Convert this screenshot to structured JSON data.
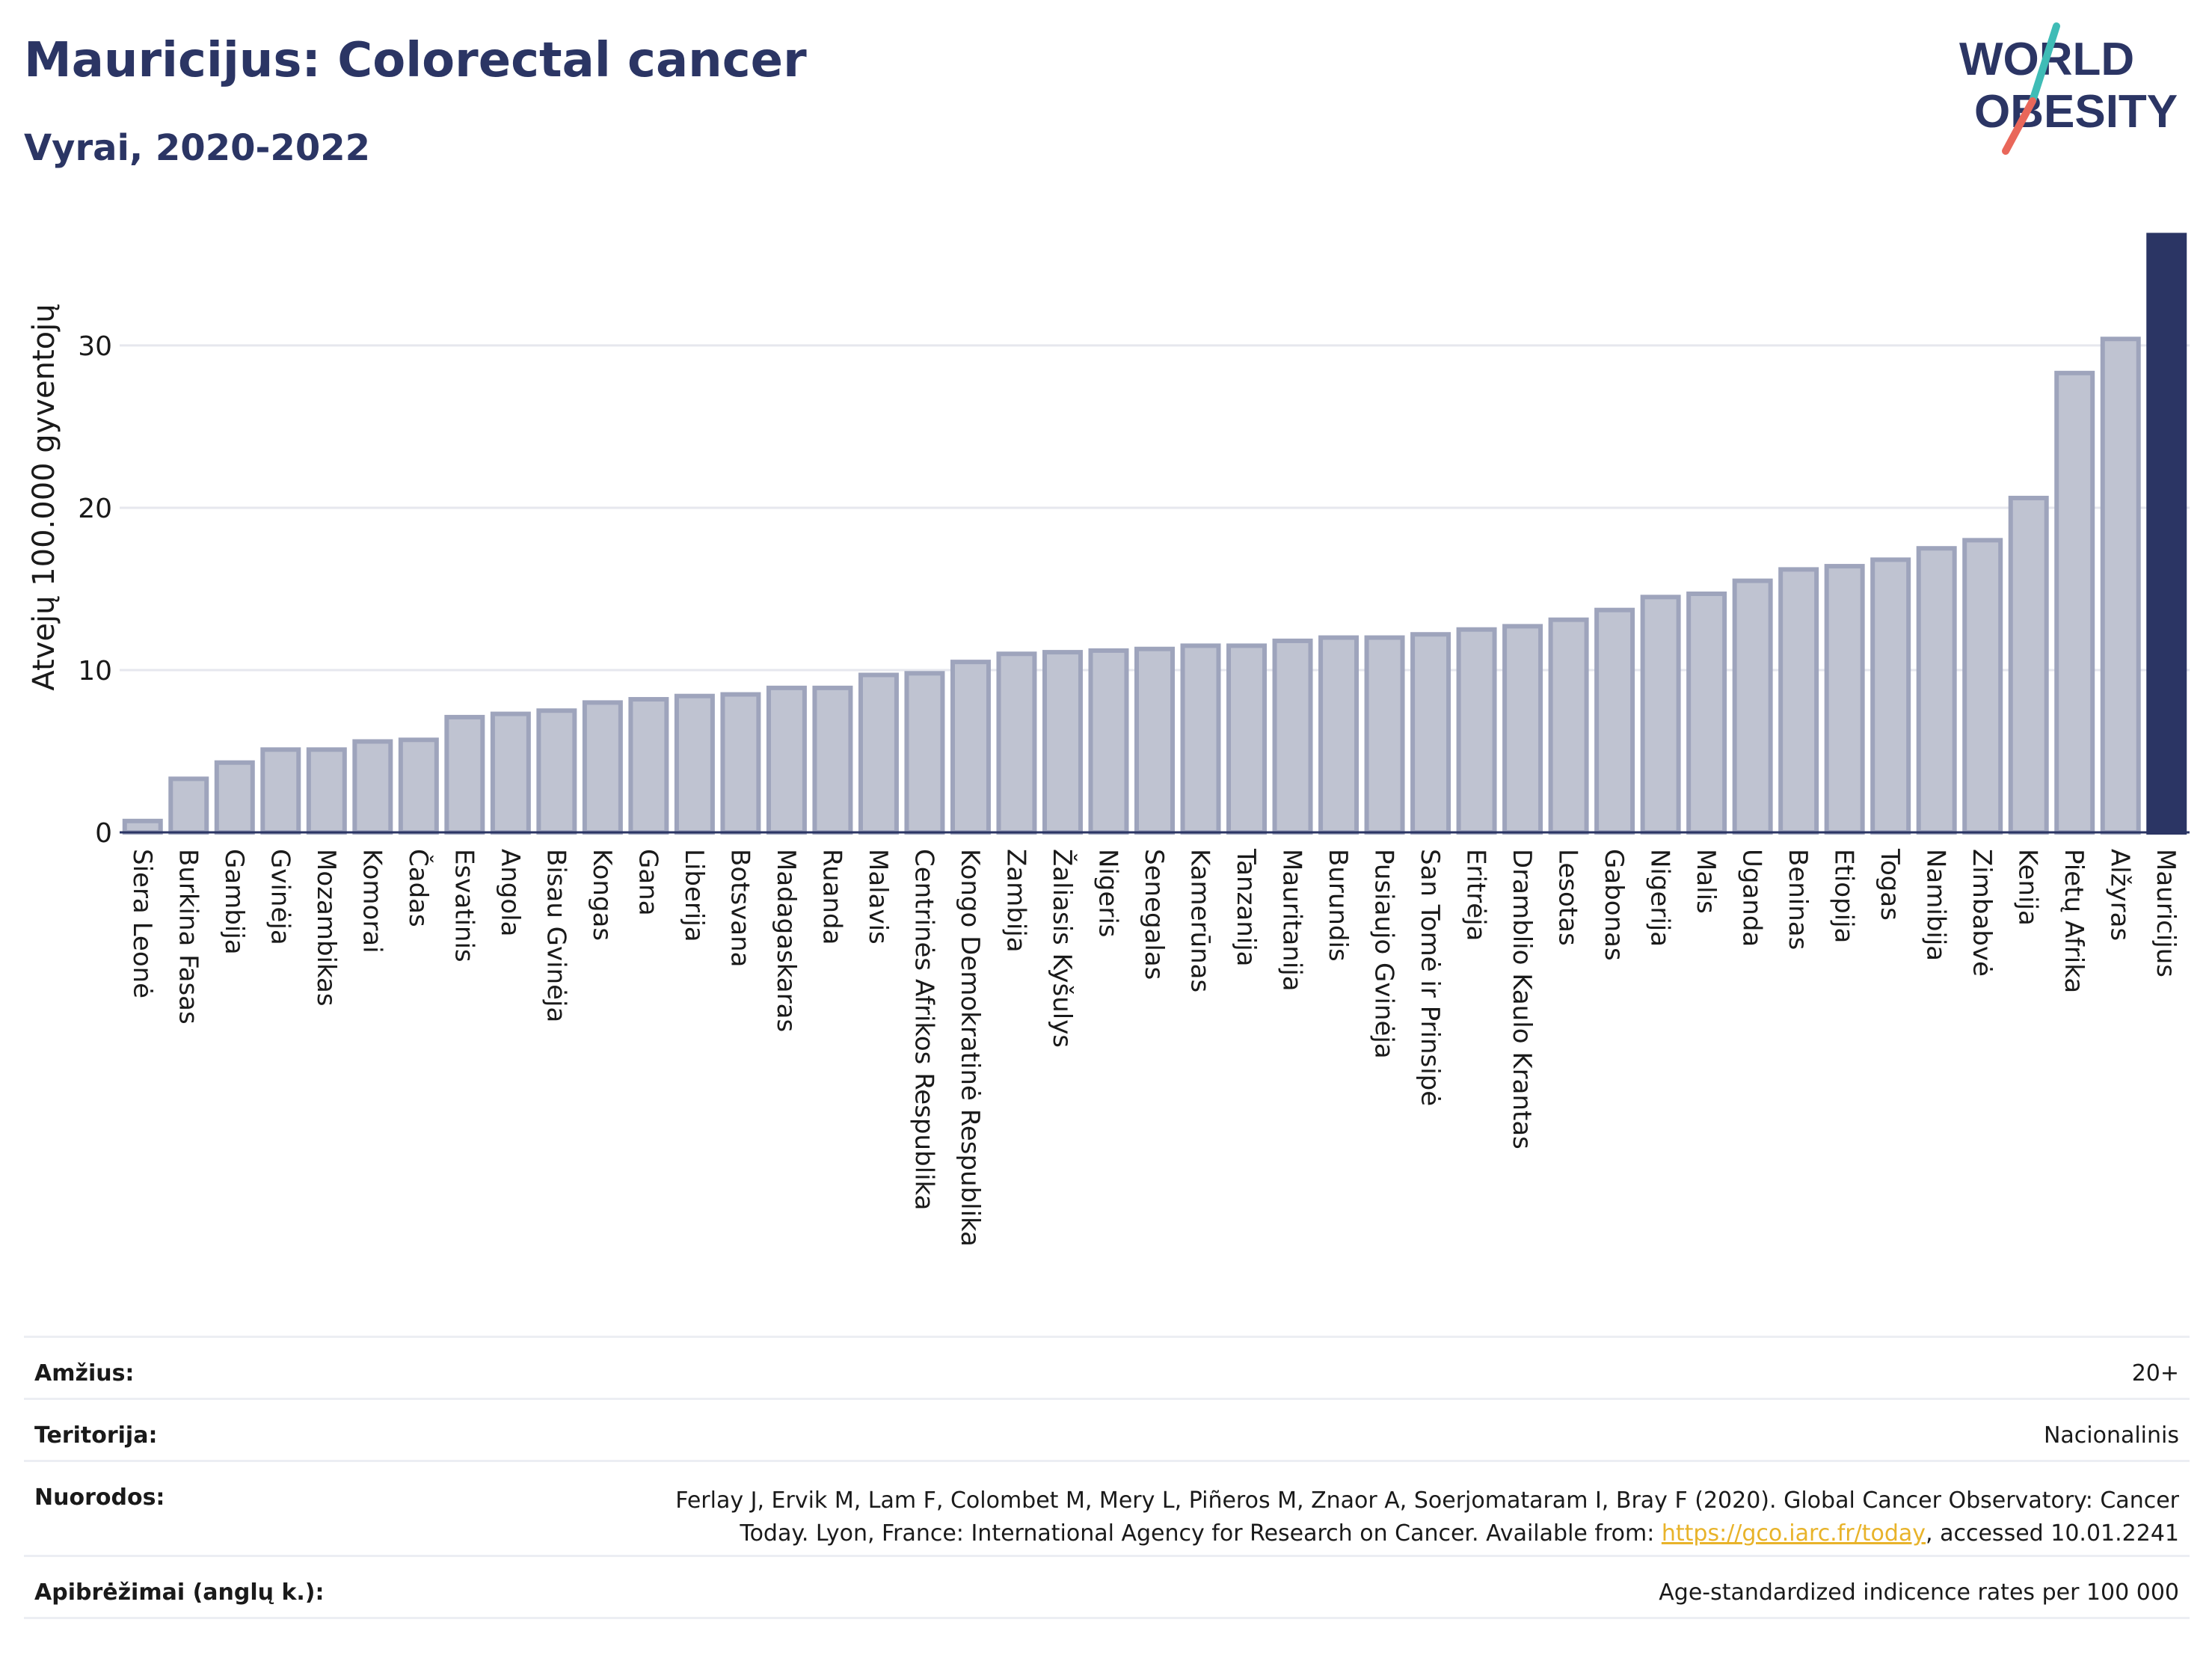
{
  "header": {
    "title": "Mauricijus: Colorectal cancer",
    "subtitle": "Vyrai, 2020-2022"
  },
  "logo": {
    "line1": "WORLD",
    "line2": "OBESITY",
    "colors": {
      "text": "#2b3564",
      "slash_top": "#3fbcb6",
      "slash_bottom": "#e9675a"
    }
  },
  "chart_data": {
    "type": "bar",
    "ylabel": "Atvejų 100.000 gyventojų",
    "xlabel": "",
    "ylim": [
      0,
      37
    ],
    "yticks": [
      0,
      10,
      20,
      30
    ],
    "grid": true,
    "categories": [
      "Siera Leonė",
      "Burkina Fasas",
      "Gambija",
      "Gvinėja",
      "Mozambikas",
      "Komorai",
      "Čadas",
      "Esvatinis",
      "Angola",
      "Bisau Gvinėja",
      "Kongas",
      "Gana",
      "Liberija",
      "Botsvana",
      "Madagaskaras",
      "Ruanda",
      "Malavis",
      "Centrinės Afrikos Respublika",
      "Kongo Demokratinė Respublika",
      "Zambija",
      "Žaliasis Kyšulys",
      "Nigeris",
      "Senegalas",
      "Kamerūnas",
      "Tanzanija",
      "Mauritanija",
      "Burundis",
      "Pusiaujo Gvinėja",
      "San Tomė ir Prinsipė",
      "Eritrėja",
      "Dramblio Kaulo Krantas",
      "Lesotas",
      "Gabonas",
      "Nigerija",
      "Malis",
      "Uganda",
      "Beninas",
      "Etiopija",
      "Togas",
      "Namibija",
      "Zimbabvė",
      "Kenija",
      "Pietų Afrika",
      "Alžyras",
      "Mauricijus"
    ],
    "values": [
      0.7,
      3.3,
      4.3,
      5.1,
      5.1,
      5.6,
      5.7,
      7.1,
      7.3,
      7.5,
      8.0,
      8.2,
      8.4,
      8.5,
      8.9,
      8.9,
      9.7,
      9.8,
      10.5,
      11.0,
      11.1,
      11.2,
      11.3,
      11.5,
      11.5,
      11.8,
      12.0,
      12.0,
      12.2,
      12.5,
      12.7,
      13.1,
      13.7,
      14.5,
      14.7,
      15.5,
      16.2,
      16.4,
      16.8,
      17.5,
      18.0,
      20.6,
      28.3,
      30.4,
      36.8
    ],
    "highlight": "Mauricijus",
    "colors": {
      "bar": "#bfc3d1",
      "bar_edge": "#9ea4bc",
      "highlight": "#2b3564",
      "grid": "#e6e7ee",
      "axis": "#2b3564"
    }
  },
  "info": {
    "age_label": "Amžius:",
    "age_value": "20+",
    "territory_label": "Teritorija:",
    "territory_value": "Nacionalinis",
    "refs_label": "Nuorodos:",
    "refs_text_before": "Ferlay J, Ervik M, Lam F, Colombet M, Mery L, Piñeros M, Znaor A, Soerjomataram I, Bray F (2020). Global Cancer Observatory: Cancer Today. Lyon, France: International Agency for Research on Cancer. Available from: ",
    "refs_link": "https://gco.iarc.fr/today",
    "refs_text_after": ", accessed 10.01.2241",
    "definitions_label": "Apibrėžimai (anglų k.):",
    "definitions_value": "Age-standardized indicence rates per 100 000"
  }
}
